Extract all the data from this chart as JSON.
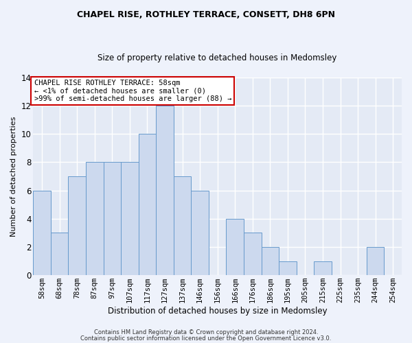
{
  "title1": "CHAPEL RISE, ROTHLEY TERRACE, CONSETT, DH8 6PN",
  "title2": "Size of property relative to detached houses in Medomsley",
  "xlabel": "Distribution of detached houses by size in Medomsley",
  "ylabel": "Number of detached properties",
  "categories": [
    "58sqm",
    "68sqm",
    "78sqm",
    "87sqm",
    "97sqm",
    "107sqm",
    "117sqm",
    "127sqm",
    "137sqm",
    "146sqm",
    "156sqm",
    "166sqm",
    "176sqm",
    "186sqm",
    "195sqm",
    "205sqm",
    "215sqm",
    "225sqm",
    "235sqm",
    "244sqm",
    "254sqm"
  ],
  "values": [
    6,
    3,
    7,
    8,
    8,
    8,
    10,
    12,
    7,
    6,
    0,
    4,
    3,
    2,
    1,
    0,
    1,
    0,
    0,
    2,
    0
  ],
  "bar_color": "#ccd9ee",
  "bar_edge_color": "#6699cc",
  "ylim": [
    0,
    14
  ],
  "yticks": [
    0,
    2,
    4,
    6,
    8,
    10,
    12,
    14
  ],
  "annotation_text": "CHAPEL RISE ROTHLEY TERRACE: 58sqm\n← <1% of detached houses are smaller (0)\n>99% of semi-detached houses are larger (88) →",
  "footer1": "Contains HM Land Registry data © Crown copyright and database right 2024.",
  "footer2": "Contains public sector information licensed under the Open Government Licence v3.0.",
  "bg_color": "#eef2fb",
  "plot_bg_color": "#e4eaf5",
  "grid_color": "#ffffff",
  "annotation_box_color": "#ffffff",
  "annotation_box_edge": "#cc0000",
  "title1_fontsize": 9.0,
  "title2_fontsize": 8.5,
  "xlabel_fontsize": 8.5,
  "ylabel_fontsize": 8.0,
  "tick_fontsize": 7.5,
  "ytick_fontsize": 8.5,
  "annotation_fontsize": 7.5
}
